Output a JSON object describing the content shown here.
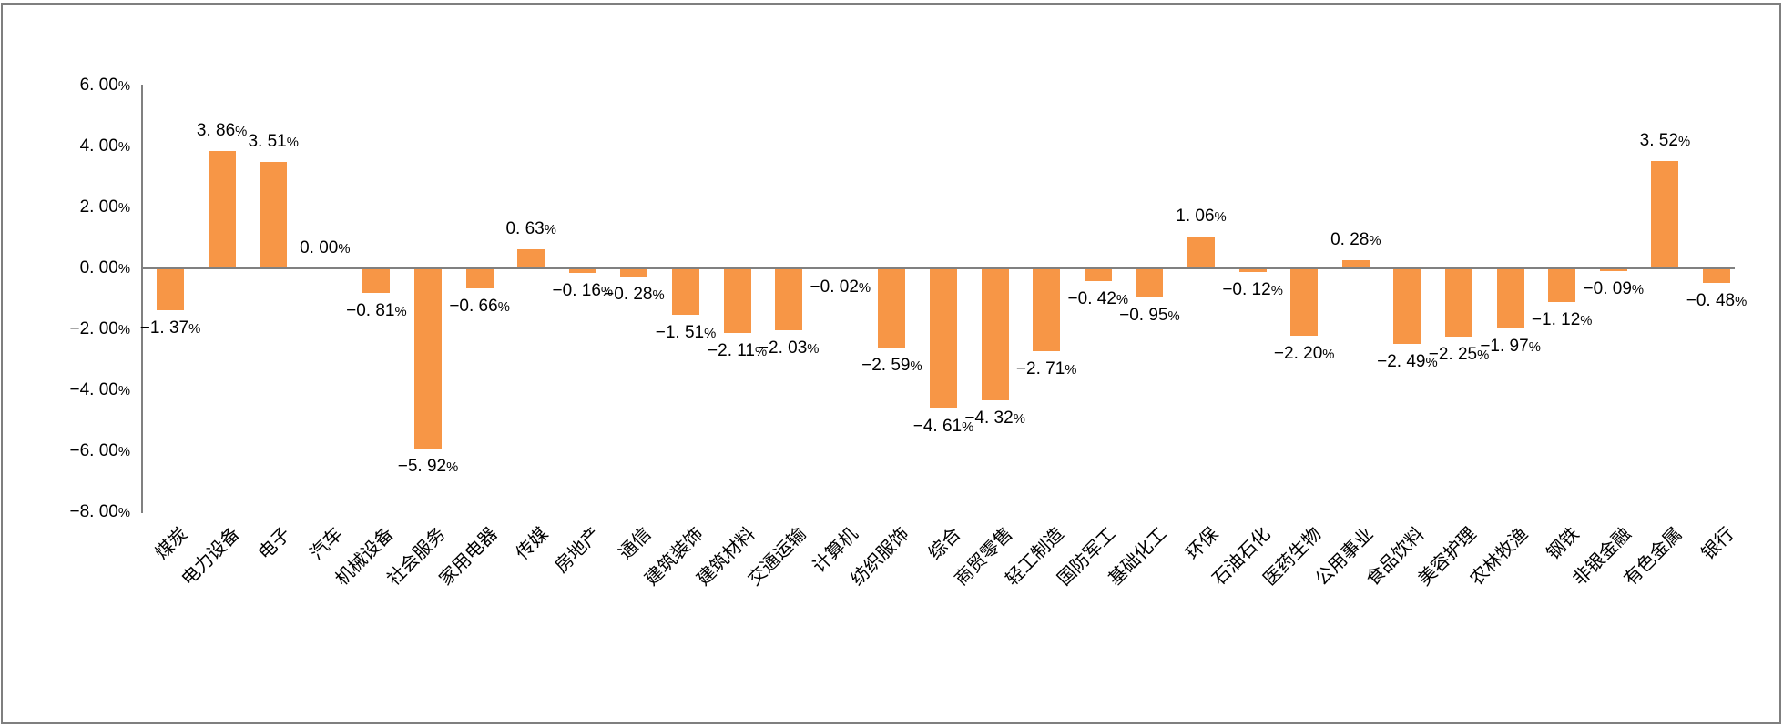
{
  "chart_data": {
    "type": "bar",
    "title": "",
    "categories": [
      "煤炭",
      "电力设备",
      "电子",
      "汽车",
      "机械设备",
      "社会服务",
      "家用电器",
      "传媒",
      "房地产",
      "通信",
      "建筑装饰",
      "建筑材料",
      "交通运输",
      "计算机",
      "纺织服饰",
      "综合",
      "商贸零售",
      "轻工制造",
      "国防军工",
      "基础化工",
      "环保",
      "石油石化",
      "医药生物",
      "公用事业",
      "食品饮料",
      "美容护理",
      "农林牧渔",
      "钢铁",
      "非银金融",
      "有色金属",
      "银行"
    ],
    "values": [
      -1.37,
      3.86,
      3.51,
      0.0,
      -0.81,
      -5.92,
      -0.66,
      0.63,
      -0.16,
      -0.28,
      -1.51,
      -2.11,
      -2.03,
      -0.02,
      -2.59,
      -4.61,
      -4.32,
      -2.71,
      -0.42,
      -0.95,
      1.06,
      -0.12,
      -2.2,
      0.28,
      -2.49,
      -2.25,
      -1.97,
      -1.12,
      -0.09,
      3.52,
      -0.48
    ],
    "data_labels": [
      "−1. 37%",
      "3. 86%",
      "3. 51%",
      "0. 00%",
      "−0. 81%",
      "−5. 92%",
      "−0. 66%",
      "0. 63%",
      "−0. 16%",
      "−0. 28%",
      "−1. 51%",
      "−2. 11%",
      "−2. 03%",
      "−0. 02%",
      "−2. 59%",
      "−4. 61%",
      "−4. 32%",
      "−2. 71%",
      "−0. 42%",
      "−0. 95%",
      "1. 06%",
      "−0. 12%",
      "−2. 20%",
      "0. 28%",
      "−2. 49%",
      "−2. 25%",
      "−1. 97%",
      "−1. 12%",
      "−0. 09%",
      "3. 52%",
      "−0. 48%"
    ],
    "xlabel": "",
    "ylabel": "",
    "ylim": [
      -8,
      6
    ],
    "y_ticks": [
      6,
      4,
      2,
      0,
      -2,
      -4,
      -6,
      -8
    ],
    "y_tick_labels": [
      "6. 00%",
      "4. 00%",
      "2. 00%",
      "0. 00%",
      "−2. 00%",
      "−4. 00%",
      "−6. 00%",
      "−8. 00%"
    ],
    "grid": false,
    "legend": false,
    "bar_color": "#F79646",
    "axis_color": "#808080",
    "text_color": "#000000",
    "frame_border_color": "#7F7F7F",
    "background": "#FFFFFF"
  }
}
